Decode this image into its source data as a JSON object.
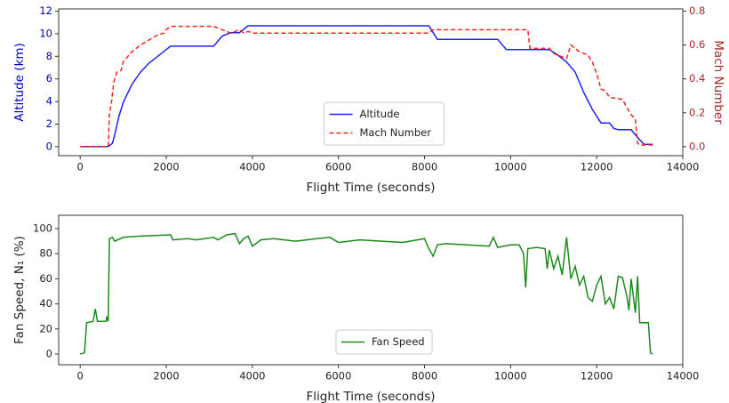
{
  "chart_data": [
    {
      "type": "line",
      "xlabel": "Flight Time (seconds)",
      "ylabel": "Altitude (km)",
      "y2label": "Mach Number",
      "ylabel_color": "#0000cc",
      "y2label_color": "#a52a2a",
      "xlim": [
        -500,
        14000
      ],
      "xticks": [
        0,
        2000,
        4000,
        6000,
        8000,
        10000,
        12000,
        14000
      ],
      "ylim": [
        -0.8,
        12.2
      ],
      "yticks": [
        0,
        2,
        4,
        6,
        8,
        10,
        12
      ],
      "y2lim": [
        -0.053,
        0.813
      ],
      "y2ticks": [
        {
          "value": 0,
          "label": "0.0"
        },
        0.2,
        0.4,
        0.6,
        0.8
      ],
      "legend": "lower center",
      "series": [
        {
          "name": "Altitude",
          "color": "#2020ff",
          "linestyle": "solid",
          "x": [
            0,
            650,
            750,
            800,
            900,
            1000,
            1200,
            1400,
            1600,
            1800,
            2000,
            2100,
            3100,
            3300,
            3500,
            3700,
            3900,
            8100,
            8300,
            9700,
            9900,
            10900,
            11100,
            11300,
            11500,
            11700,
            11900,
            12100,
            12300,
            12400,
            12500,
            12800,
            13000,
            13100,
            13300
          ],
          "values": [
            0,
            0,
            0.3,
            1.0,
            2.7,
            3.9,
            5.5,
            6.6,
            7.4,
            8.0,
            8.6,
            8.9,
            8.9,
            9.8,
            10.1,
            10.1,
            10.7,
            10.7,
            9.5,
            9.5,
            8.6,
            8.6,
            8.1,
            7.5,
            6.6,
            4.8,
            3.3,
            2.1,
            2.1,
            1.6,
            1.5,
            1.5,
            0.6,
            0.2,
            0.2
          ]
        },
        {
          "name": "Mach Number",
          "color": "#ff2020",
          "linestyle": "dashed",
          "axis": "y2",
          "x": [
            0,
            650,
            680,
            720,
            780,
            850,
            950,
            1000,
            1200,
            1400,
            1600,
            1800,
            1950,
            2000,
            2100,
            3100,
            3300,
            3500,
            3700,
            3800,
            3900,
            4000,
            8100,
            8200,
            10400,
            10450,
            10900,
            11000,
            11200,
            11300,
            11400,
            11600,
            11800,
            11900,
            12000,
            12100,
            12200,
            12300,
            12600,
            12700,
            12800,
            12900,
            12950,
            13000,
            13300
          ],
          "values": [
            0,
            0,
            0.2,
            0.25,
            0.38,
            0.44,
            0.45,
            0.5,
            0.56,
            0.6,
            0.63,
            0.66,
            0.67,
            0.69,
            0.71,
            0.71,
            0.69,
            0.67,
            0.69,
            0.67,
            0.68,
            0.67,
            0.67,
            0.69,
            0.69,
            0.58,
            0.58,
            0.55,
            0.53,
            0.52,
            0.6,
            0.56,
            0.54,
            0.5,
            0.43,
            0.34,
            0.33,
            0.29,
            0.28,
            0.23,
            0.19,
            0.16,
            0.02,
            0.01,
            0.01
          ]
        }
      ]
    },
    {
      "type": "line",
      "xlabel": "Flight Time (seconds)",
      "ylabel": "Fan Speed, N₁ (%)",
      "xlim": [
        -500,
        14000
      ],
      "xticks": [
        0,
        2000,
        4000,
        6000,
        8000,
        10000,
        12000,
        14000
      ],
      "ylim": [
        -8.5,
        110.6
      ],
      "yticks": [
        0,
        20,
        40,
        60,
        80,
        100
      ],
      "legend": "lower center",
      "series": [
        {
          "name": "Fan Speed",
          "color": "#1a8a1a",
          "linestyle": "solid",
          "x": [
            0,
            100,
            150,
            300,
            350,
            400,
            600,
            620,
            650,
            680,
            750,
            800,
            1000,
            1400,
            2100,
            2150,
            2500,
            2700,
            3100,
            3200,
            3400,
            3600,
            3700,
            3800,
            3900,
            4000,
            4200,
            4500,
            5000,
            5500,
            5800,
            6000,
            6500,
            7000,
            7500,
            8000,
            8100,
            8200,
            8300,
            8500,
            9000,
            9500,
            9600,
            9700,
            10000,
            10200,
            10300,
            10350,
            10400,
            10600,
            10800,
            10850,
            10900,
            11000,
            11100,
            11200,
            11300,
            11400,
            11500,
            11600,
            11700,
            11800,
            11900,
            12000,
            12100,
            12200,
            12300,
            12400,
            12500,
            12600,
            12700,
            12750,
            12800,
            12900,
            12950,
            13000,
            13200,
            13250,
            13300
          ],
          "values": [
            0,
            1,
            25,
            26,
            36,
            26,
            26,
            30,
            26,
            92,
            93,
            90,
            93,
            94,
            95,
            91,
            92,
            91,
            93,
            91,
            95,
            96,
            88,
            92,
            94,
            86,
            91,
            92,
            90,
            92,
            93,
            89,
            91,
            90,
            89,
            92,
            84,
            78,
            87,
            88,
            87,
            86,
            93,
            85,
            87,
            87,
            80,
            53,
            84,
            85,
            84,
            68,
            83,
            68,
            78,
            63,
            93,
            60,
            70,
            55,
            62,
            45,
            42,
            55,
            62,
            40,
            45,
            36,
            62,
            61,
            46,
            35,
            60,
            33,
            62,
            25,
            25,
            1,
            0
          ]
        }
      ]
    }
  ]
}
